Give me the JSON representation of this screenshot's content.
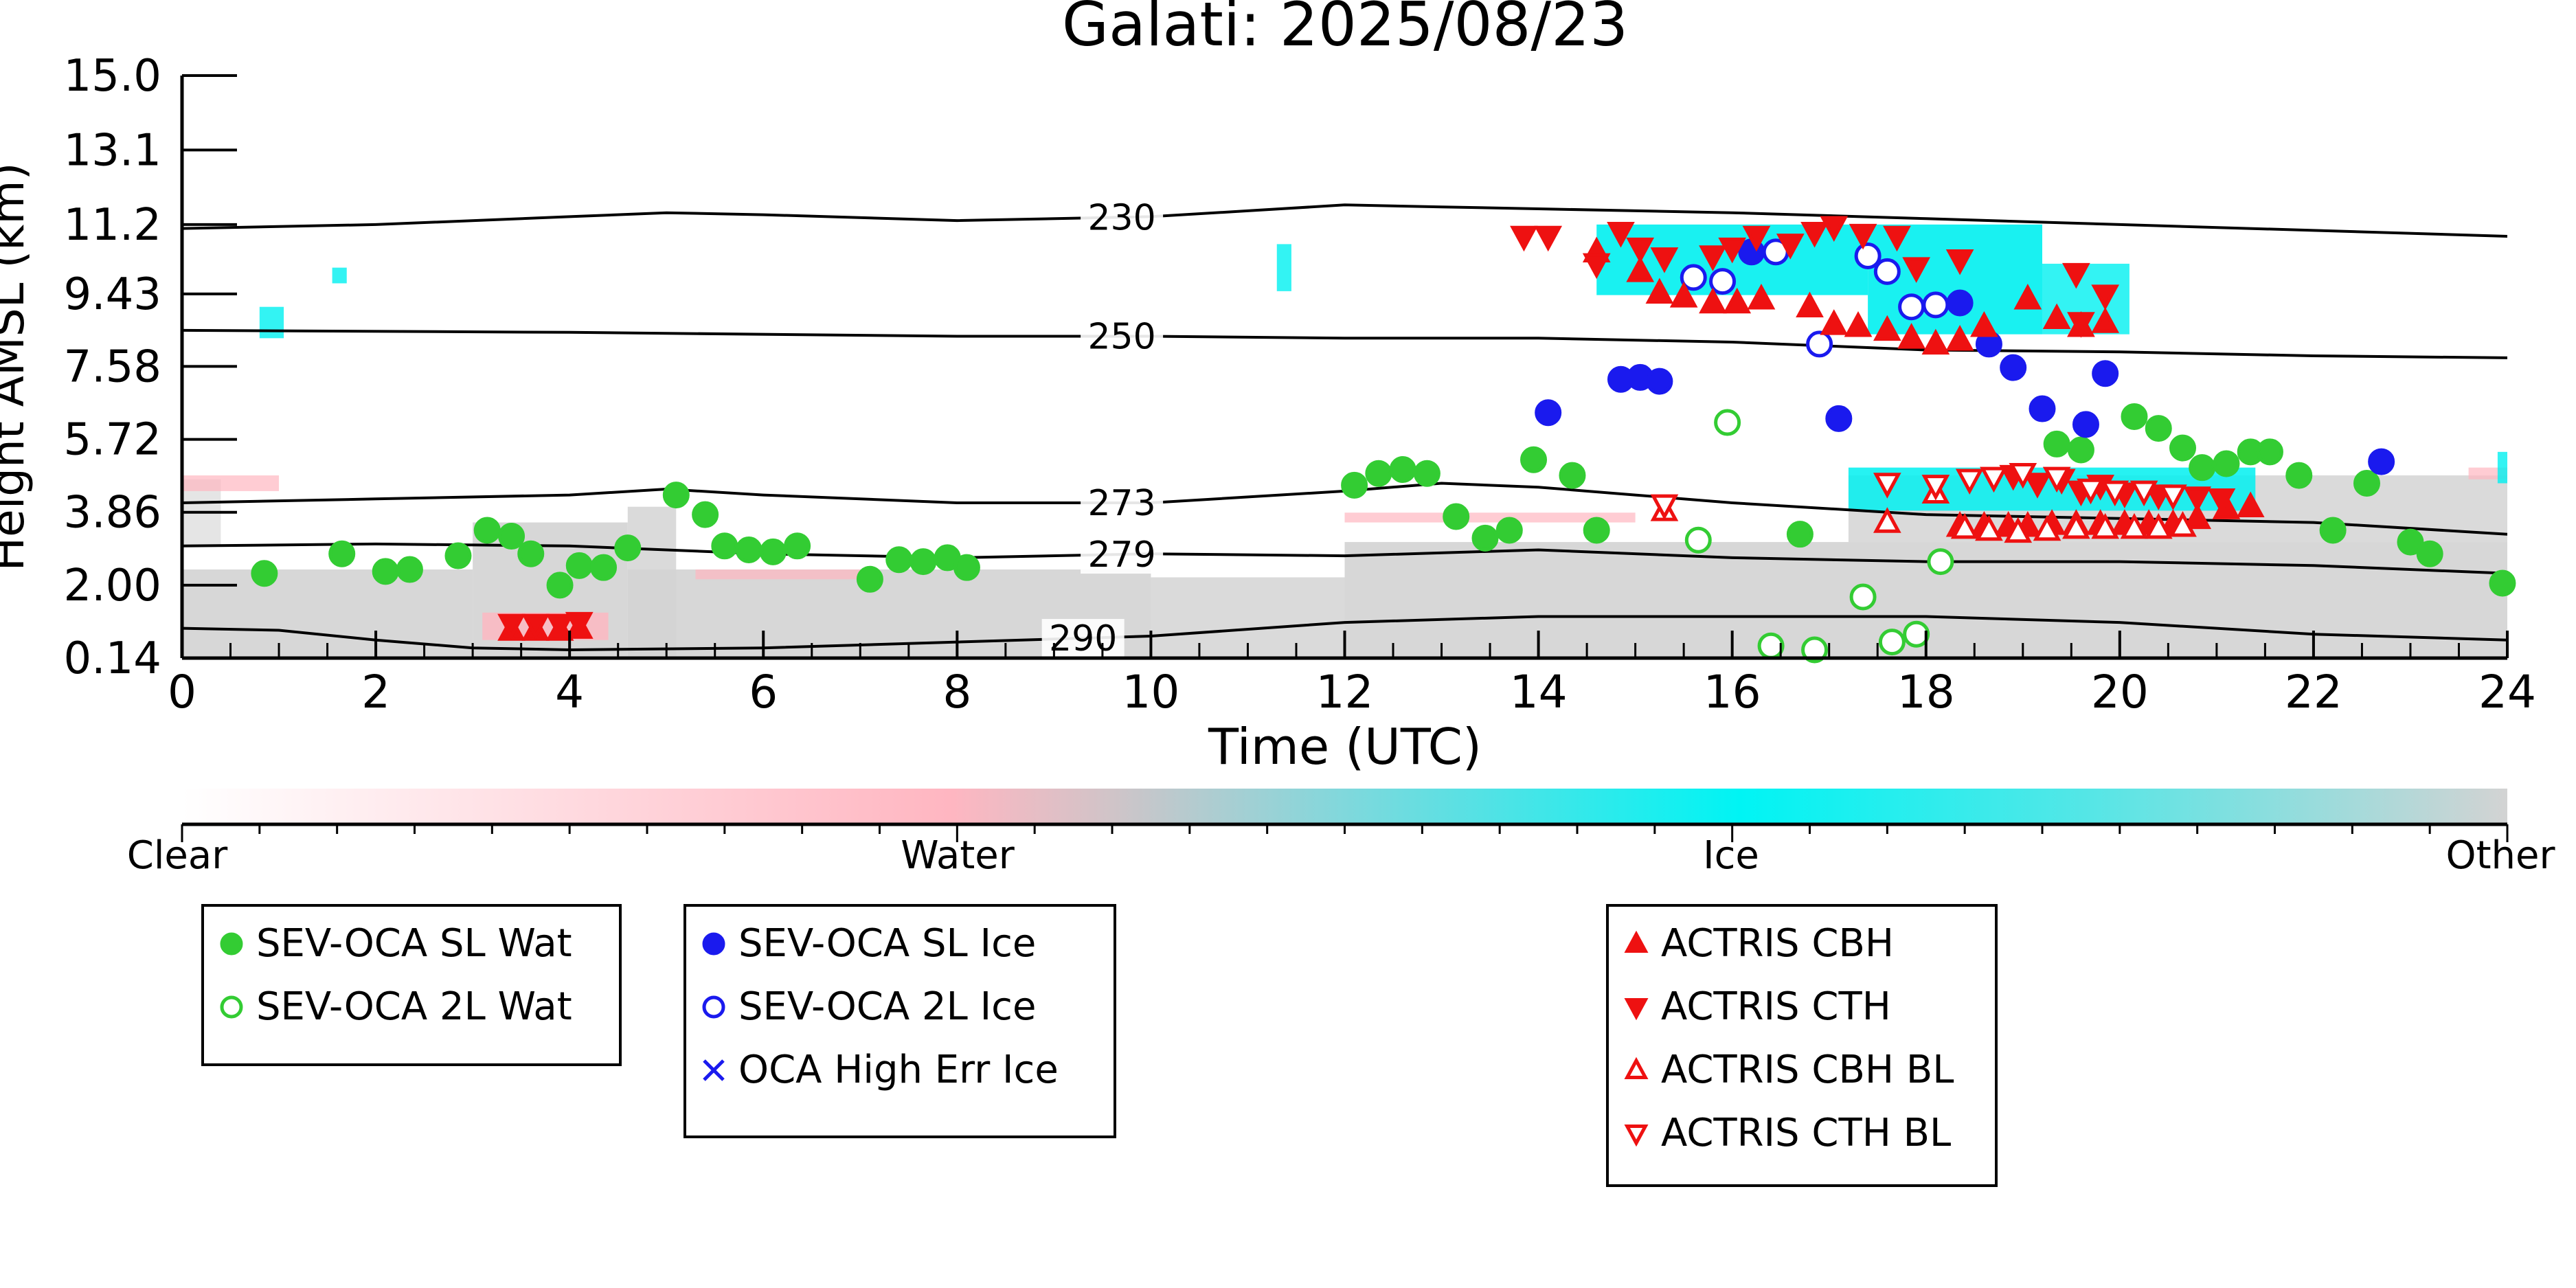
{
  "chart_data": {
    "type": "scatter",
    "title": "Galati: 2025/08/23",
    "xlabel": "Time (UTC)",
    "ylabel": "Height AMSL (km)",
    "xlim": [
      0,
      24
    ],
    "ylim": [
      0.14,
      15.0
    ],
    "x_ticks": [
      0,
      2,
      4,
      6,
      8,
      10,
      12,
      14,
      16,
      18,
      20,
      22,
      24
    ],
    "y_ticks": [
      "0.14",
      "2.00",
      "3.86",
      "5.72",
      "7.58",
      "9.43",
      "11.2",
      "13.1",
      "15.0"
    ],
    "grid": false,
    "colorbar": {
      "labels": [
        "Clear",
        "Water",
        "Ice",
        "Other"
      ],
      "colors": [
        "#ffffff",
        "#ffb6c1",
        "#00f0f0",
        "#d3d3d3"
      ]
    },
    "isotherms": [
      {
        "label": "230",
        "label_x": 9.7,
        "points": [
          [
            0,
            11.1
          ],
          [
            2,
            11.2
          ],
          [
            4,
            11.4
          ],
          [
            5,
            11.5
          ],
          [
            6,
            11.45
          ],
          [
            8,
            11.3
          ],
          [
            10,
            11.4
          ],
          [
            11,
            11.55
          ],
          [
            12,
            11.7
          ],
          [
            13,
            11.65
          ],
          [
            14,
            11.6
          ],
          [
            16,
            11.5
          ],
          [
            18,
            11.35
          ],
          [
            20,
            11.2
          ],
          [
            22,
            11.05
          ],
          [
            24,
            10.9
          ]
        ]
      },
      {
        "label": "250",
        "label_x": 9.7,
        "points": [
          [
            0,
            8.5
          ],
          [
            4,
            8.45
          ],
          [
            8,
            8.35
          ],
          [
            10,
            8.35
          ],
          [
            12,
            8.3
          ],
          [
            14,
            8.3
          ],
          [
            16,
            8.2
          ],
          [
            18,
            8.0
          ],
          [
            20,
            7.95
          ],
          [
            22,
            7.85
          ],
          [
            24,
            7.8
          ]
        ]
      },
      {
        "label": "273",
        "label_x": 9.7,
        "points": [
          [
            0,
            4.1
          ],
          [
            2,
            4.2
          ],
          [
            4,
            4.3
          ],
          [
            5,
            4.45
          ],
          [
            6,
            4.3
          ],
          [
            8,
            4.1
          ],
          [
            10,
            4.1
          ],
          [
            12,
            4.4
          ],
          [
            13,
            4.6
          ],
          [
            14,
            4.5
          ],
          [
            15,
            4.3
          ],
          [
            16,
            4.1
          ],
          [
            18,
            3.8
          ],
          [
            20,
            3.7
          ],
          [
            22,
            3.6
          ],
          [
            24,
            3.3
          ]
        ]
      },
      {
        "label": "279",
        "label_x": 9.7,
        "points": [
          [
            0,
            3.0
          ],
          [
            2,
            3.05
          ],
          [
            4,
            3.0
          ],
          [
            6,
            2.8
          ],
          [
            8,
            2.7
          ],
          [
            10,
            2.8
          ],
          [
            12,
            2.75
          ],
          [
            14,
            2.9
          ],
          [
            16,
            2.7
          ],
          [
            18,
            2.6
          ],
          [
            20,
            2.6
          ],
          [
            22,
            2.5
          ],
          [
            24,
            2.3
          ]
        ]
      },
      {
        "label": "290",
        "label_x": 9.3,
        "points": [
          [
            0,
            0.9
          ],
          [
            1,
            0.85
          ],
          [
            2,
            0.6
          ],
          [
            3,
            0.4
          ],
          [
            4,
            0.35
          ],
          [
            6,
            0.4
          ],
          [
            8,
            0.55
          ],
          [
            10,
            0.7
          ],
          [
            12,
            1.05
          ],
          [
            14,
            1.2
          ],
          [
            16,
            1.2
          ],
          [
            18,
            1.2
          ],
          [
            20,
            1.05
          ],
          [
            22,
            0.75
          ],
          [
            24,
            0.6
          ]
        ]
      }
    ],
    "series": [
      {
        "name": "SEV-OCA SL Wat",
        "marker": "circle-filled",
        "color": "#33cc33",
        "points": [
          [
            0.85,
            2.3
          ],
          [
            1.65,
            2.8
          ],
          [
            2.1,
            2.35
          ],
          [
            2.35,
            2.4
          ],
          [
            2.85,
            2.75
          ],
          [
            3.15,
            3.4
          ],
          [
            3.4,
            3.25
          ],
          [
            3.6,
            2.8
          ],
          [
            3.9,
            2.0
          ],
          [
            4.1,
            2.5
          ],
          [
            4.35,
            2.45
          ],
          [
            4.6,
            2.95
          ],
          [
            5.1,
            4.3
          ],
          [
            5.4,
            3.8
          ],
          [
            5.6,
            3.0
          ],
          [
            5.85,
            2.9
          ],
          [
            6.1,
            2.85
          ],
          [
            6.35,
            3.0
          ],
          [
            7.1,
            2.15
          ],
          [
            7.4,
            2.65
          ],
          [
            7.65,
            2.6
          ],
          [
            7.9,
            2.7
          ],
          [
            8.1,
            2.45
          ],
          [
            12.1,
            4.55
          ],
          [
            12.35,
            4.85
          ],
          [
            12.6,
            4.95
          ],
          [
            12.85,
            4.85
          ],
          [
            13.15,
            3.75
          ],
          [
            13.45,
            3.2
          ],
          [
            13.7,
            3.4
          ],
          [
            13.95,
            5.2
          ],
          [
            14.35,
            4.8
          ],
          [
            14.6,
            3.4
          ],
          [
            16.7,
            3.3
          ],
          [
            19.35,
            5.6
          ],
          [
            19.6,
            5.45
          ],
          [
            20.15,
            6.3
          ],
          [
            20.4,
            6.0
          ],
          [
            20.65,
            5.5
          ],
          [
            20.85,
            5.0
          ],
          [
            21.1,
            5.1
          ],
          [
            21.35,
            5.4
          ],
          [
            21.55,
            5.4
          ],
          [
            21.85,
            4.8
          ],
          [
            22.2,
            3.4
          ],
          [
            22.55,
            4.6
          ],
          [
            23.0,
            3.1
          ],
          [
            23.2,
            2.8
          ],
          [
            23.95,
            2.05
          ]
        ]
      },
      {
        "name": "SEV-OCA 2L Wat",
        "marker": "circle-open",
        "color": "#33cc33",
        "points": [
          [
            15.95,
            6.15
          ],
          [
            15.65,
            3.15
          ],
          [
            16.4,
            0.45
          ],
          [
            16.85,
            0.35
          ],
          [
            17.35,
            1.7
          ],
          [
            17.65,
            0.55
          ],
          [
            17.9,
            0.75
          ],
          [
            18.15,
            2.6
          ]
        ]
      },
      {
        "name": "SEV-OCA SL Ice",
        "marker": "circle-filled",
        "color": "#1a1aee",
        "points": [
          [
            14.1,
            6.4
          ],
          [
            14.85,
            7.25
          ],
          [
            15.05,
            7.3
          ],
          [
            15.25,
            7.2
          ],
          [
            16.2,
            10.5
          ],
          [
            17.1,
            6.25
          ],
          [
            18.35,
            9.2
          ],
          [
            18.65,
            8.15
          ],
          [
            18.9,
            7.55
          ],
          [
            19.2,
            6.5
          ],
          [
            19.65,
            6.1
          ],
          [
            19.85,
            7.4
          ],
          [
            22.7,
            5.15
          ]
        ]
      },
      {
        "name": "SEV-OCA 2L Ice",
        "marker": "circle-open",
        "color": "#1a1aee",
        "points": [
          [
            15.6,
            9.85
          ],
          [
            15.9,
            9.75
          ],
          [
            16.45,
            10.5
          ],
          [
            16.9,
            8.15
          ],
          [
            17.4,
            10.4
          ],
          [
            17.6,
            10.0
          ],
          [
            17.85,
            9.1
          ],
          [
            18.1,
            9.15
          ]
        ]
      },
      {
        "name": "OCA High Err Ice",
        "marker": "x",
        "color": "#1a1aee",
        "points": []
      },
      {
        "name": "ACTRIS CBH",
        "marker": "triangle-up-filled",
        "color": "#ee1111",
        "points": [
          [
            3.4,
            0.85
          ],
          [
            3.65,
            0.85
          ],
          [
            3.9,
            0.85
          ],
          [
            4.1,
            0.9
          ],
          [
            14.6,
            10.5
          ],
          [
            15.05,
            10.0
          ],
          [
            15.25,
            9.45
          ],
          [
            15.5,
            9.35
          ],
          [
            15.8,
            9.2
          ],
          [
            16.05,
            9.2
          ],
          [
            16.3,
            9.3
          ],
          [
            16.8,
            9.1
          ],
          [
            17.05,
            8.65
          ],
          [
            17.3,
            8.6
          ],
          [
            17.6,
            8.5
          ],
          [
            17.85,
            8.3
          ],
          [
            18.1,
            8.15
          ],
          [
            18.35,
            8.25
          ],
          [
            18.6,
            8.6
          ],
          [
            19.05,
            9.3
          ],
          [
            19.35,
            8.8
          ],
          [
            19.6,
            8.6
          ],
          [
            19.85,
            8.7
          ],
          [
            18.35,
            3.5
          ],
          [
            18.6,
            3.5
          ],
          [
            18.85,
            3.5
          ],
          [
            19.05,
            3.5
          ],
          [
            19.3,
            3.55
          ],
          [
            19.55,
            3.55
          ],
          [
            19.8,
            3.55
          ],
          [
            20.05,
            3.55
          ],
          [
            20.3,
            3.55
          ],
          [
            20.55,
            3.55
          ],
          [
            20.8,
            3.7
          ],
          [
            21.1,
            3.95
          ],
          [
            21.35,
            4.0
          ]
        ]
      },
      {
        "name": "ACTRIS CTH",
        "marker": "triangle-down-filled",
        "color": "#ee1111",
        "points": [
          [
            3.4,
            1.0
          ],
          [
            3.65,
            1.0
          ],
          [
            3.9,
            1.0
          ],
          [
            4.1,
            1.05
          ],
          [
            13.85,
            10.9
          ],
          [
            14.1,
            10.9
          ],
          [
            14.6,
            10.2
          ],
          [
            14.85,
            11.0
          ],
          [
            15.05,
            10.6
          ],
          [
            15.3,
            10.35
          ],
          [
            15.8,
            10.4
          ],
          [
            16.0,
            10.6
          ],
          [
            16.25,
            10.9
          ],
          [
            16.6,
            10.7
          ],
          [
            16.85,
            11.0
          ],
          [
            17.05,
            11.15
          ],
          [
            17.35,
            10.95
          ],
          [
            17.7,
            10.9
          ],
          [
            17.9,
            10.1
          ],
          [
            18.35,
            10.3
          ],
          [
            19.55,
            9.95
          ],
          [
            19.85,
            9.4
          ],
          [
            19.6,
            8.7
          ],
          [
            18.9,
            4.8
          ],
          [
            19.15,
            4.6
          ],
          [
            19.4,
            4.7
          ],
          [
            19.6,
            4.4
          ],
          [
            19.8,
            4.55
          ],
          [
            20.05,
            4.35
          ],
          [
            20.4,
            4.3
          ],
          [
            20.8,
            4.25
          ],
          [
            21.05,
            4.2
          ]
        ]
      },
      {
        "name": "ACTRIS CBH BL",
        "marker": "triangle-up-open",
        "color": "#ee1111",
        "points": [
          [
            15.3,
            3.9
          ],
          [
            17.6,
            3.6
          ],
          [
            18.1,
            4.35
          ],
          [
            18.4,
            3.45
          ],
          [
            18.65,
            3.4
          ],
          [
            18.95,
            3.35
          ],
          [
            19.25,
            3.4
          ],
          [
            19.55,
            3.45
          ],
          [
            19.85,
            3.45
          ],
          [
            20.15,
            3.45
          ],
          [
            20.4,
            3.45
          ],
          [
            20.65,
            3.5
          ]
        ]
      },
      {
        "name": "ACTRIS CTH BL",
        "marker": "triangle-down-open",
        "color": "#ee1111",
        "points": [
          [
            15.3,
            4.05
          ],
          [
            17.6,
            4.6
          ],
          [
            18.1,
            4.55
          ],
          [
            18.45,
            4.7
          ],
          [
            18.7,
            4.75
          ],
          [
            19.0,
            4.85
          ],
          [
            19.35,
            4.75
          ],
          [
            19.7,
            4.45
          ],
          [
            19.95,
            4.4
          ],
          [
            20.25,
            4.4
          ],
          [
            20.55,
            4.3
          ]
        ]
      }
    ],
    "legend": {
      "placement": "bottom",
      "groups": [
        [
          "SEV-OCA SL Wat",
          "SEV-OCA 2L Wat"
        ],
        [
          "SEV-OCA SL Ice",
          "SEV-OCA 2L Ice",
          "OCA High Err Ice"
        ],
        [
          "ACTRIS CBH",
          "ACTRIS CTH",
          "ACTRIS CBH BL",
          "ACTRIS CTH BL"
        ]
      ]
    }
  }
}
